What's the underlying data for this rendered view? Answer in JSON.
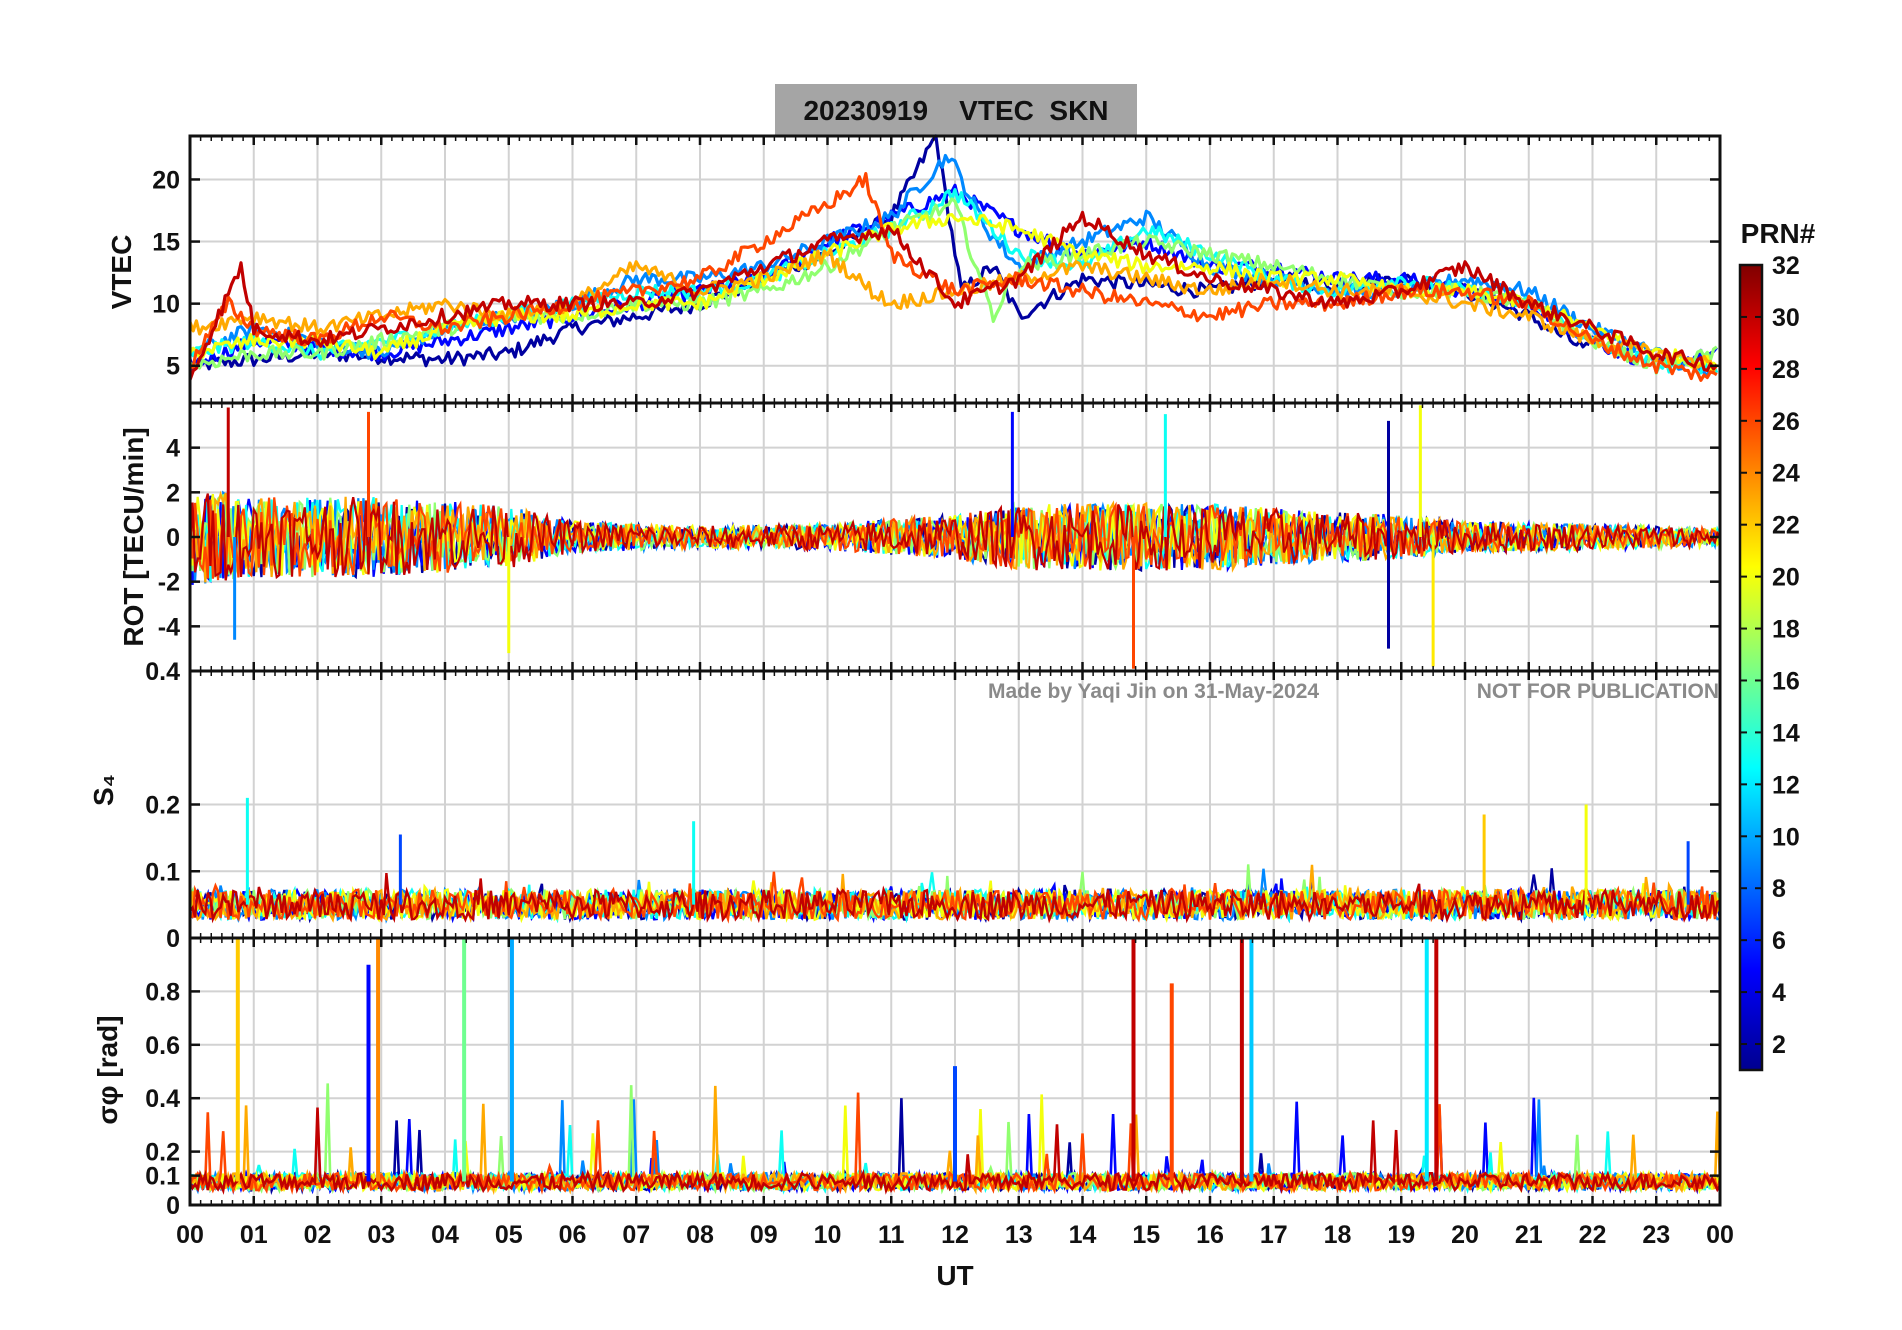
{
  "chart_data": {
    "type": "line",
    "title": "20230919    VTEC  SKN",
    "xlabel": "UT",
    "xlim": [
      0,
      24
    ],
    "x_tick_labels": [
      "00",
      "01",
      "02",
      "03",
      "04",
      "05",
      "06",
      "07",
      "08",
      "09",
      "10",
      "11",
      "12",
      "13",
      "14",
      "15",
      "16",
      "17",
      "18",
      "19",
      "20",
      "21",
      "22",
      "23",
      "00"
    ],
    "watermark": [
      "Made by Yaqi Jin on 31-May-2024",
      "NOT FOR PUBLICATION"
    ],
    "colorbar": {
      "label": "PRN#",
      "range": [
        1,
        32
      ],
      "tick_labels": [
        "2",
        "4",
        "6",
        "8",
        "10",
        "12",
        "14",
        "16",
        "18",
        "20",
        "22",
        "24",
        "26",
        "28",
        "30",
        "32"
      ],
      "colormap": "jet"
    },
    "panels": [
      {
        "name": "vtec",
        "ylabel": "VTEC",
        "ylim": [
          2,
          23.5
        ],
        "yticks": [
          5,
          10,
          15,
          20
        ],
        "ytick_labels": [
          "5",
          "10",
          "15",
          "20"
        ],
        "series": [
          {
            "prn": 2,
            "hours": [
              0,
              2,
              4,
              5,
              6,
              8,
              10,
              11,
              11.7,
              12.1,
              12.6,
              13,
              14,
              16,
              17,
              18,
              19,
              20,
              21,
              22
            ],
            "values": [
              5,
              6,
              5.5,
              6,
              8,
              10,
              14,
              17,
              23.5,
              11,
              13,
              9,
              12,
              11,
              12,
              11.5,
              12,
              11,
              9,
              6
            ]
          },
          {
            "prn": 5,
            "hours": [
              0,
              1,
              2,
              3,
              4,
              5,
              6,
              7,
              8,
              9,
              10,
              11,
              12,
              13,
              14,
              15,
              16,
              17,
              18,
              19,
              20,
              21,
              22,
              23,
              24
            ],
            "values": [
              5,
              7,
              6.5,
              6,
              7,
              8,
              9,
              10,
              11,
              12,
              15,
              17,
              19,
              16,
              14,
              15,
              13,
              13,
              12,
              12,
              11,
              10,
              7,
              5,
              6
            ]
          },
          {
            "prn": 9,
            "hours": [
              0,
              1,
              2,
              3,
              4,
              5,
              6,
              7,
              8,
              9,
              10,
              11,
              11.9,
              12.5,
              13,
              14,
              15,
              16,
              17,
              18,
              19,
              20,
              21,
              22,
              23,
              24
            ],
            "values": [
              6,
              8,
              7,
              6,
              8,
              9,
              10,
              12,
              12,
              13,
              15,
              17,
              22,
              16,
              13,
              15,
              17,
              13,
              12,
              11,
              11,
              12,
              11,
              8,
              6,
              4
            ]
          },
          {
            "prn": 13,
            "hours": [
              0,
              1,
              2,
              3,
              4,
              5,
              6,
              7,
              8,
              9,
              10,
              11,
              12,
              13,
              14,
              15,
              16,
              17,
              18,
              19,
              20,
              21,
              22,
              23,
              24
            ],
            "values": [
              6,
              7,
              6,
              7,
              8,
              9,
              10,
              11,
              11,
              12,
              14,
              16,
              19,
              14,
              13,
              16,
              14,
              12,
              11,
              12,
              11,
              10,
              7,
              5,
              5
            ]
          },
          {
            "prn": 17,
            "hours": [
              0,
              1,
              2,
              3,
              4,
              5,
              6,
              7,
              8,
              9,
              10,
              11,
              12,
              12.6,
              13,
              14,
              15,
              16,
              17,
              18,
              19,
              20,
              21,
              22,
              23,
              24
            ],
            "values": [
              5,
              6,
              6,
              7,
              8,
              9,
              9,
              10,
              10,
              11,
              13,
              16,
              18,
              9,
              13,
              14,
              15,
              14,
              13,
              12,
              11,
              11,
              10,
              7,
              5,
              6
            ]
          },
          {
            "prn": 20,
            "hours": [
              0,
              1,
              2,
              3,
              4,
              5,
              6,
              7,
              8,
              9,
              10,
              11,
              12,
              13,
              14,
              15,
              16,
              17,
              18,
              19,
              20,
              21,
              22,
              23,
              24
            ],
            "values": [
              6,
              7,
              7,
              6,
              8,
              9,
              9,
              10,
              10,
              12,
              14,
              16,
              17,
              16,
              14,
              13,
              13,
              12,
              12,
              11,
              11,
              10,
              8,
              6,
              5
            ]
          },
          {
            "prn": 23,
            "hours": [
              0,
              1,
              2,
              3,
              4,
              5,
              6,
              7,
              8,
              9,
              10,
              10.7,
              11,
              12,
              13,
              14,
              15,
              16,
              17,
              18,
              19,
              20,
              21,
              22,
              23,
              24
            ],
            "values": [
              8,
              9,
              8,
              9,
              10,
              9,
              10,
              13,
              11,
              12,
              14,
              11,
              10,
              11,
              12,
              13,
              12,
              11,
              12,
              11,
              11,
              10,
              9,
              7,
              6,
              5
            ]
          },
          {
            "prn": 26,
            "hours": [
              0,
              0.6,
              1,
              2,
              3,
              4,
              5,
              6,
              7,
              8,
              9,
              10,
              10.6,
              11,
              12,
              13,
              14,
              15,
              16,
              17,
              18,
              19,
              20,
              21,
              22,
              23,
              24
            ],
            "values": [
              5,
              10,
              8,
              7,
              9,
              8,
              9,
              10,
              11,
              12,
              15,
              18,
              20,
              14,
              11,
              12,
              11,
              10,
              9,
              10,
              10,
              11,
              11,
              10,
              7,
              5,
              4
            ]
          },
          {
            "prn": 30,
            "hours": [
              0,
              0.8,
              1,
              2,
              3,
              4,
              5,
              6,
              7,
              8,
              9,
              10,
              11,
              12,
              13,
              14,
              15,
              16,
              17,
              18,
              19,
              20,
              21,
              22,
              23,
              24
            ],
            "values": [
              4,
              13,
              8,
              7,
              8,
              9,
              10,
              10,
              10,
              11,
              13,
              15,
              16,
              10,
              12,
              17,
              14,
              12,
              11,
              10,
              11,
              13,
              10,
              8,
              6,
              5
            ]
          }
        ]
      },
      {
        "name": "rot",
        "ylabel": "ROT [TECU/min]",
        "ylim": [
          -6,
          6
        ],
        "yticks": [
          -4,
          -2,
          0,
          2,
          4
        ],
        "ytick_labels": [
          "-4",
          "-2",
          "0",
          "2",
          "4"
        ],
        "noise_envelope": {
          "hours": [
            0,
            1,
            3,
            5,
            6,
            8,
            10,
            12,
            13,
            14,
            16,
            18,
            19,
            20,
            22,
            24
          ],
          "amplitude": [
            2.2,
            1.8,
            1.8,
            1.4,
            0.7,
            0.5,
            0.6,
            1.0,
            1.5,
            1.5,
            1.5,
            1.1,
            1.0,
            0.7,
            0.6,
            0.4
          ]
        },
        "spikes": [
          {
            "prn": 30,
            "hour": 0.6,
            "value": 5.8
          },
          {
            "prn": 26,
            "hour": 2.8,
            "value": 5.6
          },
          {
            "prn": 5,
            "hour": 12.9,
            "value": 5.6
          },
          {
            "prn": 13,
            "hour": 15.3,
            "value": 5.5
          },
          {
            "prn": 2,
            "hour": 18.8,
            "value": 5.2
          },
          {
            "prn": 20,
            "hour": 19.3,
            "value": 5.9
          },
          {
            "prn": 26,
            "hour": 14.8,
            "value": -5.9
          },
          {
            "prn": 2,
            "hour": 18.8,
            "value": -5.0
          },
          {
            "prn": 21,
            "hour": 19.5,
            "value": -5.8
          },
          {
            "prn": 20,
            "hour": 5.0,
            "value": -5.2
          },
          {
            "prn": 9,
            "hour": 0.7,
            "value": -4.6
          }
        ]
      },
      {
        "name": "s4",
        "ylabel": "S₄",
        "ylim": [
          0,
          0.4
        ],
        "yticks": [
          0,
          0.1,
          0.2,
          0.4
        ],
        "ytick_labels": [
          "0",
          "0.1",
          "0.2",
          "0.4"
        ],
        "baseline": 0.05,
        "spikes": [
          {
            "prn": 13,
            "hour": 0.9,
            "value": 0.21
          },
          {
            "prn": 7,
            "hour": 3.3,
            "value": 0.155
          },
          {
            "prn": 13,
            "hour": 7.9,
            "value": 0.175
          },
          {
            "prn": 22,
            "hour": 20.3,
            "value": 0.185
          },
          {
            "prn": 20,
            "hour": 21.9,
            "value": 0.2
          },
          {
            "prn": 7,
            "hour": 23.5,
            "value": 0.145
          }
        ]
      },
      {
        "name": "sigma_phi",
        "ylabel": "σφ [rad]",
        "ylim": [
          0,
          1
        ],
        "yticks": [
          0,
          0.1,
          0.2,
          0.4,
          0.6,
          0.8
        ],
        "ytick_labels": [
          "0",
          "0.1",
          "0.2",
          "0.4",
          "0.6",
          "0.8"
        ],
        "baseline": 0.08,
        "spikes": [
          {
            "prn": 22,
            "hour": 0.75,
            "value": 1.0
          },
          {
            "prn": 5,
            "hour": 2.8,
            "value": 0.9
          },
          {
            "prn": 24,
            "hour": 2.95,
            "value": 1.0
          },
          {
            "prn": 16,
            "hour": 4.3,
            "value": 1.0
          },
          {
            "prn": 10,
            "hour": 5.05,
            "value": 1.0
          },
          {
            "prn": 30,
            "hour": 14.8,
            "value": 1.0
          },
          {
            "prn": 30,
            "hour": 16.5,
            "value": 1.0
          },
          {
            "prn": 11,
            "hour": 16.65,
            "value": 1.0
          },
          {
            "prn": 12,
            "hour": 19.4,
            "value": 1.0
          },
          {
            "prn": 30,
            "hour": 19.55,
            "value": 1.0
          },
          {
            "prn": 26,
            "hour": 15.4,
            "value": 0.83
          },
          {
            "prn": 7,
            "hour": 12.0,
            "value": 0.52
          }
        ]
      }
    ]
  }
}
